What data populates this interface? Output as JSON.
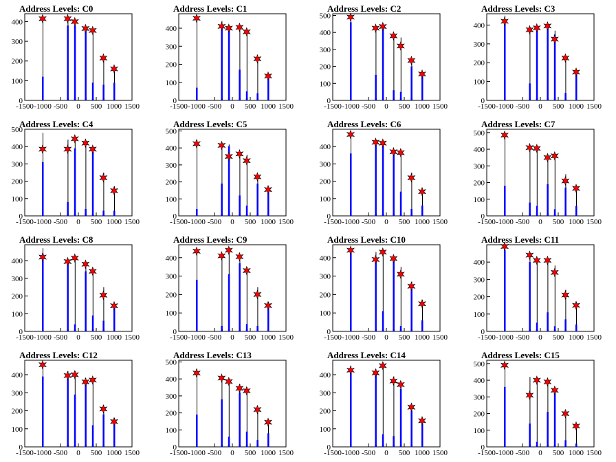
{
  "figure": {
    "xticks": [
      -1500,
      -1000,
      -500,
      0,
      500,
      1000,
      1500
    ],
    "star_color": "#ff0000",
    "hist_color": "#0000ff",
    "line_color": "#000000"
  },
  "chart_data": [
    {
      "type": "bar",
      "title": "Address Levels: C0",
      "xlim": [
        -1500,
        1500
      ],
      "ylim": [
        0,
        440
      ],
      "yticks": [
        0,
        100,
        200,
        300,
        400
      ],
      "x": [
        -1000,
        -300,
        -100,
        200,
        400,
        700,
        1000
      ],
      "peak": [
        430,
        410,
        400,
        365,
        355,
        220,
        160
      ],
      "star": [
        415,
        415,
        400,
        365,
        355,
        215,
        160
      ],
      "fill": [
        120,
        380,
        380,
        370,
        90,
        80,
        90
      ]
    },
    {
      "type": "bar",
      "title": "Address Levels: C1",
      "xlim": [
        -1500,
        1500
      ],
      "ylim": [
        0,
        480
      ],
      "yticks": [
        0,
        100,
        200,
        300,
        400
      ],
      "x": [
        -1000,
        -300,
        -100,
        200,
        400,
        700,
        1000
      ],
      "peak": [
        460,
        440,
        400,
        405,
        390,
        220,
        140
      ],
      "star": [
        455,
        410,
        400,
        405,
        380,
        230,
        135
      ],
      "fill": [
        70,
        400,
        400,
        170,
        50,
        40,
        130
      ]
    },
    {
      "type": "bar",
      "title": "Address Levels: C2",
      "xlim": [
        -1500,
        1500
      ],
      "ylim": [
        0,
        510
      ],
      "yticks": [
        0,
        100,
        200,
        300,
        400,
        500
      ],
      "x": [
        -1000,
        -300,
        -100,
        200,
        400,
        700,
        1000
      ],
      "peak": [
        500,
        430,
        440,
        390,
        370,
        240,
        160
      ],
      "star": [
        490,
        425,
        435,
        380,
        320,
        235,
        155
      ],
      "fill": [
        460,
        150,
        430,
        60,
        50,
        200,
        150
      ]
    },
    {
      "type": "bar",
      "title": "Address Levels: C3",
      "xlim": [
        -1500,
        1500
      ],
      "ylim": [
        0,
        460
      ],
      "yticks": [
        0,
        100,
        200,
        300,
        400
      ],
      "x": [
        -1000,
        -300,
        -100,
        200,
        400,
        700,
        1000
      ],
      "peak": [
        450,
        390,
        390,
        410,
        370,
        230,
        160
      ],
      "star": [
        420,
        375,
        385,
        395,
        325,
        225,
        150
      ],
      "fill": [
        420,
        90,
        380,
        390,
        350,
        40,
        150
      ]
    },
    {
      "type": "bar",
      "title": "Address Levels: C4",
      "xlim": [
        -1500,
        1500
      ],
      "ylim": [
        0,
        500
      ],
      "yticks": [
        0,
        100,
        200,
        300,
        400,
        500
      ],
      "x": [
        -1000,
        -300,
        -100,
        200,
        400,
        700,
        1000
      ],
      "peak": [
        480,
        440,
        450,
        430,
        390,
        250,
        170
      ],
      "star": [
        385,
        385,
        445,
        420,
        385,
        220,
        145
      ],
      "fill": [
        310,
        80,
        390,
        40,
        370,
        30,
        30
      ]
    },
    {
      "type": "bar",
      "title": "Address Levels: C5",
      "xlim": [
        -1500,
        1500
      ],
      "ylim": [
        0,
        510
      ],
      "yticks": [
        0,
        100,
        200,
        300,
        400,
        500
      ],
      "x": [
        -1000,
        -300,
        -100,
        200,
        400,
        700,
        1000
      ],
      "peak": [
        450,
        430,
        420,
        380,
        360,
        240,
        160
      ],
      "star": [
        425,
        415,
        350,
        365,
        325,
        230,
        155
      ],
      "fill": [
        40,
        190,
        410,
        120,
        60,
        190,
        140
      ]
    },
    {
      "type": "bar",
      "title": "Address Levels: C6",
      "xlim": [
        -1500,
        1500
      ],
      "ylim": [
        0,
        500
      ],
      "yticks": [
        0,
        100,
        200,
        300,
        400
      ],
      "x": [
        -1000,
        -300,
        -100,
        200,
        400,
        700,
        1000
      ],
      "peak": [
        490,
        430,
        420,
        380,
        370,
        250,
        150
      ],
      "star": [
        470,
        425,
        420,
        370,
        365,
        220,
        140
      ],
      "fill": [
        360,
        410,
        410,
        360,
        140,
        40,
        60
      ]
    },
    {
      "type": "bar",
      "title": "Address Levels: C7",
      "xlim": [
        -1500,
        1500
      ],
      "ylim": [
        0,
        520
      ],
      "yticks": [
        0,
        100,
        200,
        300,
        400,
        500
      ],
      "x": [
        -1000,
        -300,
        -100,
        200,
        400,
        700,
        1000
      ],
      "peak": [
        490,
        420,
        420,
        370,
        370,
        250,
        170
      ],
      "star": [
        485,
        410,
        405,
        350,
        360,
        210,
        165
      ],
      "fill": [
        180,
        80,
        60,
        190,
        40,
        170,
        60
      ]
    },
    {
      "type": "bar",
      "title": "Address Levels: C8",
      "xlim": [
        -1500,
        1500
      ],
      "ylim": [
        0,
        490
      ],
      "yticks": [
        0,
        100,
        200,
        300,
        400
      ],
      "x": [
        -1000,
        -300,
        -100,
        200,
        400,
        700,
        1000
      ],
      "peak": [
        470,
        410,
        420,
        390,
        360,
        250,
        160
      ],
      "star": [
        420,
        395,
        415,
        380,
        340,
        205,
        145
      ],
      "fill": [
        440,
        390,
        40,
        340,
        90,
        60,
        150
      ]
    },
    {
      "type": "bar",
      "title": "Address Levels: C9",
      "xlim": [
        -1500,
        1500
      ],
      "ylim": [
        0,
        470
      ],
      "yticks": [
        0,
        100,
        200,
        300,
        400
      ],
      "x": [
        -1000,
        -300,
        -100,
        200,
        400,
        700,
        1000
      ],
      "peak": [
        450,
        420,
        450,
        410,
        350,
        240,
        160
      ],
      "star": [
        435,
        410,
        440,
        405,
        330,
        200,
        140
      ],
      "fill": [
        280,
        30,
        310,
        370,
        40,
        30,
        140
      ]
    },
    {
      "type": "bar",
      "title": "Address Levels: C10",
      "xlim": [
        -1500,
        1500
      ],
      "ylim": [
        0,
        470
      ],
      "yticks": [
        0,
        100,
        200,
        300,
        400
      ],
      "x": [
        -1000,
        -300,
        -100,
        200,
        400,
        700,
        1000
      ],
      "peak": [
        450,
        430,
        440,
        410,
        350,
        270,
        170
      ],
      "star": [
        440,
        390,
        430,
        395,
        310,
        245,
        150
      ],
      "fill": [
        430,
        380,
        110,
        390,
        30,
        240,
        60
      ]
    },
    {
      "type": "bar",
      "title": "Address Levels: C11",
      "xlim": [
        -1500,
        1500
      ],
      "ylim": [
        0,
        500
      ],
      "yticks": [
        0,
        100,
        200,
        300,
        400
      ],
      "x": [
        -1000,
        -300,
        -100,
        200,
        400,
        700,
        1000
      ],
      "peak": [
        500,
        450,
        420,
        420,
        380,
        240,
        170
      ],
      "star": [
        490,
        440,
        410,
        410,
        340,
        210,
        150
      ],
      "fill": [
        470,
        400,
        50,
        110,
        30,
        70,
        40
      ]
    },
    {
      "type": "bar",
      "title": "Address Levels: C12",
      "xlim": [
        -1500,
        1500
      ],
      "ylim": [
        0,
        480
      ],
      "yticks": [
        0,
        100,
        200,
        300,
        400
      ],
      "x": [
        -1000,
        -300,
        -100,
        200,
        400,
        700,
        1000
      ],
      "peak": [
        470,
        420,
        420,
        380,
        380,
        230,
        160
      ],
      "star": [
        455,
        395,
        400,
        360,
        370,
        210,
        140
      ],
      "fill": [
        390,
        380,
        290,
        360,
        120,
        180,
        140
      ]
    },
    {
      "type": "bar",
      "title": "Address Levels: C13",
      "xlim": [
        -1500,
        1500
      ],
      "ylim": [
        0,
        510
      ],
      "yticks": [
        0,
        100,
        200,
        300,
        400,
        500
      ],
      "x": [
        -1000,
        -300,
        -100,
        200,
        400,
        700,
        1000
      ],
      "peak": [
        460,
        420,
        390,
        370,
        350,
        240,
        160
      ],
      "star": [
        435,
        405,
        385,
        345,
        330,
        220,
        145
      ],
      "fill": [
        190,
        280,
        60,
        320,
        90,
        40,
        80
      ]
    },
    {
      "type": "bar",
      "title": "Address Levels: C14",
      "xlim": [
        -1500,
        1500
      ],
      "ylim": [
        0,
        480
      ],
      "yticks": [
        0,
        100,
        200,
        300,
        400
      ],
      "x": [
        -1000,
        -300,
        -100,
        200,
        400,
        700,
        1000
      ],
      "peak": [
        450,
        430,
        460,
        390,
        360,
        240,
        160
      ],
      "star": [
        425,
        410,
        450,
        365,
        345,
        220,
        145
      ],
      "fill": [
        420,
        410,
        70,
        60,
        320,
        200,
        130
      ]
    },
    {
      "type": "bar",
      "title": "Address Levels: C15",
      "xlim": [
        -1500,
        1500
      ],
      "ylim": [
        0,
        520
      ],
      "yticks": [
        0,
        100,
        200,
        300,
        400,
        500
      ],
      "x": [
        -1000,
        -300,
        -100,
        200,
        400,
        700,
        1000
      ],
      "peak": [
        510,
        420,
        420,
        410,
        360,
        220,
        140
      ],
      "star": [
        490,
        310,
        400,
        390,
        340,
        200,
        125
      ],
      "fill": [
        360,
        140,
        30,
        210,
        330,
        40,
        20
      ]
    }
  ]
}
